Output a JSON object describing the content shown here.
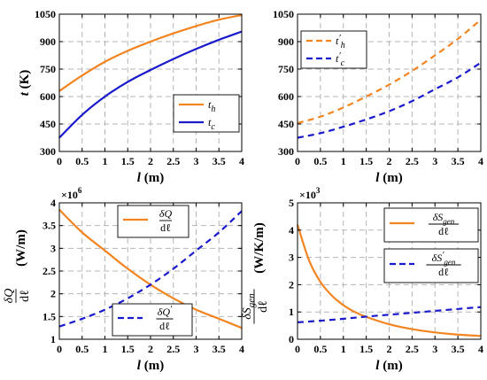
{
  "chart_data": [
    {
      "type": "line",
      "xlabel": "l (m)",
      "ylabel": "t (K)",
      "xlim": [
        0,
        4
      ],
      "ylim": [
        300,
        1050
      ],
      "x_ticks": [
        "0",
        "0.5",
        "1",
        "1.5",
        "2",
        "2.5",
        "3",
        "3.5",
        "4"
      ],
      "y_ticks": [
        "300",
        "450",
        "600",
        "750",
        "900",
        "1050"
      ],
      "grid": true,
      "legend": "bottom-right",
      "series": [
        {
          "name": "t_h",
          "color": "#F28522",
          "style": "solid",
          "x": [
            0,
            0.5,
            1,
            1.5,
            2,
            2.5,
            3,
            3.5,
            4
          ],
          "y": [
            630,
            715,
            790,
            850,
            900,
            945,
            985,
            1020,
            1045
          ]
        },
        {
          "name": "t_c",
          "color": "#1A1ACD",
          "style": "solid",
          "x": [
            0,
            0.5,
            1,
            1.5,
            2,
            2.5,
            3,
            3.5,
            4
          ],
          "y": [
            375,
            500,
            600,
            680,
            745,
            805,
            860,
            910,
            955
          ]
        }
      ]
    },
    {
      "type": "line",
      "xlabel": "l (m)",
      "ylabel": "",
      "xlim": [
        0,
        4
      ],
      "ylim": [
        300,
        1050
      ],
      "x_ticks": [
        "0",
        "0.5",
        "1",
        "1.5",
        "2",
        "2.5",
        "3",
        "3.5",
        "4"
      ],
      "y_ticks": [
        "300",
        "450",
        "600",
        "750",
        "900",
        "1050"
      ],
      "grid": true,
      "legend": "top-left",
      "series": [
        {
          "name": "t'_h",
          "color": "#F28522",
          "style": "dashed",
          "x": [
            0,
            0.5,
            1,
            1.5,
            2,
            2.5,
            3,
            3.5,
            4
          ],
          "y": [
            455,
            490,
            540,
            600,
            665,
            740,
            825,
            915,
            1020
          ]
        },
        {
          "name": "t'_c",
          "color": "#1A1ACD",
          "style": "dashed",
          "x": [
            0,
            0.5,
            1,
            1.5,
            2,
            2.5,
            3,
            3.5,
            4
          ],
          "y": [
            375,
            400,
            435,
            475,
            520,
            575,
            640,
            705,
            785
          ]
        }
      ]
    },
    {
      "type": "line",
      "xlabel": "l (m)",
      "ylabel": "δQ/dℓ (W/m)",
      "multiplier": "×10",
      "multiplier_exp": "6",
      "xlim": [
        0,
        4
      ],
      "ylim": [
        1,
        4
      ],
      "x_ticks": [
        "0",
        "0.5",
        "1",
        "1.5",
        "2",
        "2.5",
        "3",
        "3.5",
        "4"
      ],
      "y_ticks": [
        "1",
        "1.5",
        "2",
        "2.5",
        "3",
        "3.5",
        "4"
      ],
      "grid": true,
      "legend": "split",
      "series": [
        {
          "name": "δQ/dℓ",
          "color": "#F28522",
          "style": "solid",
          "x": [
            0,
            0.5,
            1,
            1.5,
            2,
            2.5,
            3,
            3.5,
            4
          ],
          "y": [
            3.85,
            3.35,
            2.95,
            2.55,
            2.2,
            1.9,
            1.65,
            1.45,
            1.25
          ]
        },
        {
          "name": "δQ'/dℓ",
          "color": "#1A1ACD",
          "style": "dashed",
          "x": [
            0,
            0.5,
            1,
            1.5,
            2,
            2.5,
            3,
            3.5,
            4
          ],
          "y": [
            1.28,
            1.45,
            1.65,
            1.9,
            2.2,
            2.55,
            2.95,
            3.35,
            3.82
          ]
        }
      ]
    },
    {
      "type": "line",
      "xlabel": "l (m)",
      "ylabel": "δS_gen/dℓ (W/K/m)",
      "multiplier": "×10",
      "multiplier_exp": "3",
      "xlim": [
        0,
        4
      ],
      "ylim": [
        0,
        5
      ],
      "x_ticks": [
        "0",
        "0.5",
        "1",
        "1.5",
        "2",
        "2.5",
        "3",
        "3.5",
        "4"
      ],
      "y_ticks": [
        "0",
        "1",
        "2",
        "3",
        "4",
        "5"
      ],
      "grid": true,
      "legend": "right",
      "series": [
        {
          "name": "δS_gen/dℓ",
          "color": "#F28522",
          "style": "solid",
          "x": [
            0,
            0.25,
            0.5,
            0.75,
            1,
            1.25,
            1.5,
            2,
            2.5,
            3,
            3.5,
            4
          ],
          "y": [
            4.2,
            2.9,
            2.1,
            1.6,
            1.25,
            1.0,
            0.82,
            0.55,
            0.37,
            0.25,
            0.17,
            0.12
          ]
        },
        {
          "name": "δS'_gen/dℓ",
          "color": "#1A1ACD",
          "style": "dashed",
          "x": [
            0,
            0.5,
            1,
            1.5,
            2,
            2.5,
            3,
            3.5,
            4
          ],
          "y": [
            0.62,
            0.68,
            0.75,
            0.83,
            0.9,
            0.97,
            1.04,
            1.11,
            1.18
          ]
        }
      ]
    }
  ]
}
